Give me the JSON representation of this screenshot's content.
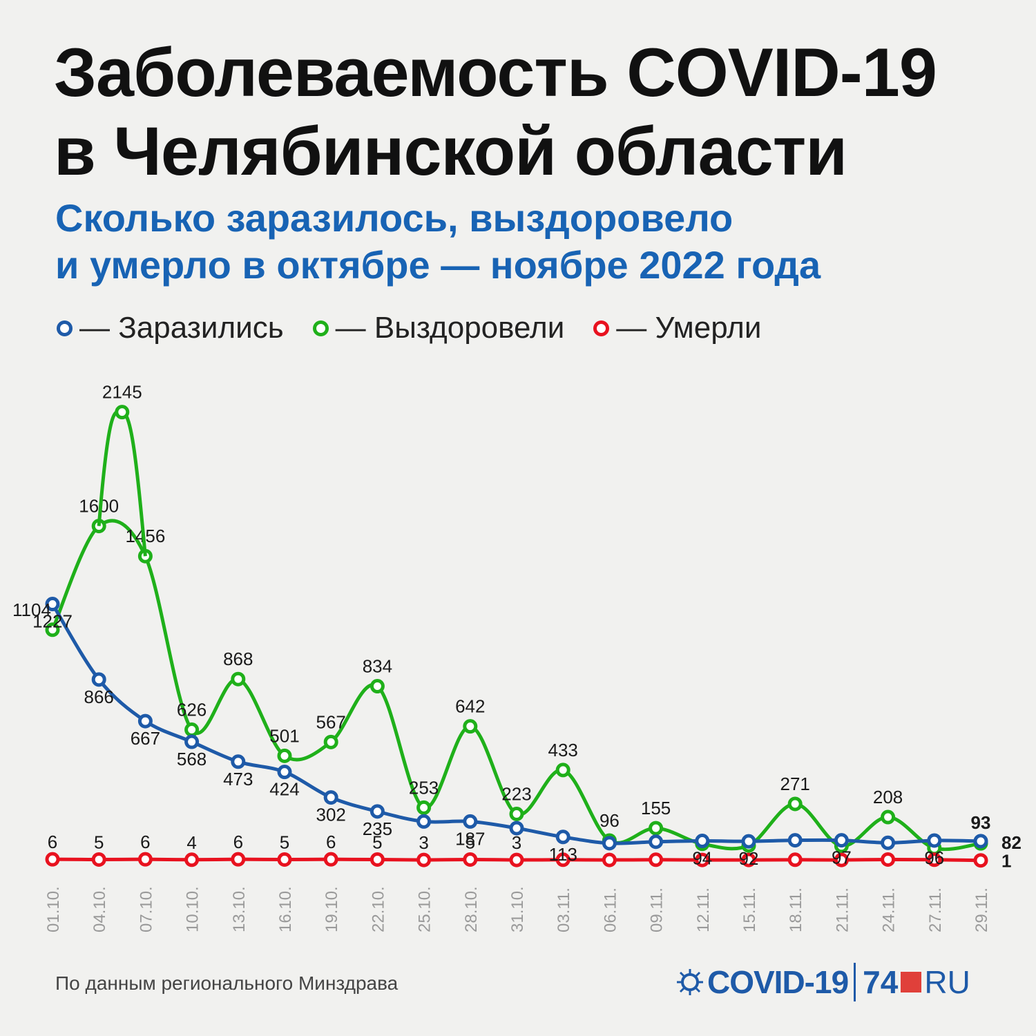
{
  "title_line1": "Заболеваемость COVID-19",
  "title_line2": "в Челябинской области",
  "subtitle_line1": "Сколько заразилось, выздоровело",
  "subtitle_line2": "и умерло в октябре — ноябре 2022 года",
  "source": "По данным регионального Минздрава",
  "logo": {
    "covid": "COVID-19",
    "num": "74",
    "ru": "RU"
  },
  "colors": {
    "infected": "#1e5aa8",
    "recovered": "#1fb01a",
    "died": "#e8121f",
    "subtitle": "#1863b4"
  },
  "chart_data": {
    "type": "line",
    "x": [
      "01.10.",
      "04.10.",
      "07.10.",
      "10.10.",
      "13.10.",
      "16.10.",
      "19.10.",
      "22.10.",
      "25.10.",
      "28.10.",
      "31.10.",
      "03.11.",
      "06.11.",
      "09.11.",
      "12.11.",
      "15.11.",
      "18.11.",
      "21.11.",
      "24.11.",
      "27.11.",
      "29.11."
    ],
    "legend_placement": "top-left",
    "grid": false,
    "ylim": [
      0,
      2200
    ],
    "series": [
      {
        "name": "— Заразились",
        "key": "infected",
        "values": [
          1227,
          866,
          667,
          568,
          473,
          424,
          302,
          235,
          187,
          187,
          155,
          113,
          83,
          90,
          94,
          92,
          97,
          97,
          85,
          96,
          93
        ],
        "labels": [
          "1227",
          "866",
          "667",
          "568",
          "473",
          "424",
          "302",
          "235",
          "",
          "187",
          "",
          "113",
          "",
          "",
          "94",
          "92",
          "",
          "97",
          "",
          "96",
          "93"
        ]
      },
      {
        "name": "— Выздоровели",
        "key": "recovered",
        "values": [
          1104,
          1600,
          1456,
          626,
          868,
          501,
          567,
          834,
          253,
          642,
          223,
          433,
          96,
          155,
          80,
          72,
          271,
          70,
          208,
          60,
          82
        ],
        "labels": [
          "1104",
          "1600",
          "1456",
          "626",
          "868",
          "501",
          "567",
          "834",
          "253",
          "642",
          "223",
          "433",
          "96",
          "155",
          "",
          "",
          "271",
          "",
          "208",
          "",
          "82"
        ]
      },
      {
        "name": "— Умерли",
        "key": "died",
        "values": [
          6,
          5,
          6,
          4,
          6,
          5,
          6,
          5,
          3,
          5,
          3,
          4,
          3,
          4,
          3,
          3,
          4,
          3,
          5,
          4,
          1
        ],
        "labels": [
          "6",
          "5",
          "6",
          "4",
          "6",
          "5",
          "6",
          "5",
          "3",
          "5",
          "3",
          "",
          "",
          "",
          "",
          "",
          "",
          "",
          "",
          "",
          "1"
        ]
      }
    ],
    "peak": {
      "label": "2145",
      "value": 2145
    }
  }
}
